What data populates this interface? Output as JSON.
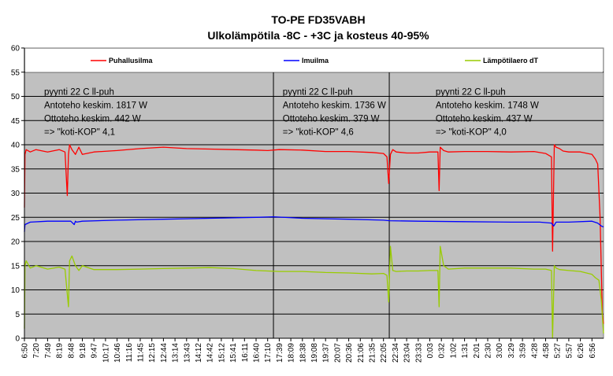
{
  "chart_data": {
    "type": "line",
    "title": "TO-PE FD35VABH",
    "subtitle": "Ulkolämpötila -8C - +3C ja kosteus 40-95%",
    "xlabel": "",
    "ylabel": "",
    "ylim": [
      0,
      60
    ],
    "y_ticks": [
      0,
      5,
      10,
      15,
      20,
      25,
      30,
      35,
      40,
      45,
      50,
      55,
      60
    ],
    "grid": true,
    "legend_position": "top",
    "plot_background": "#c0c0c0",
    "x_tick_labels": [
      "6:50",
      "7:20",
      "7:49",
      "8:19",
      "8:48",
      "9:18",
      "9:47",
      "10:17",
      "10:46",
      "11:16",
      "11:45",
      "12:15",
      "12:44",
      "13:14",
      "13:43",
      "14:12",
      "14:42",
      "15:12",
      "15:41",
      "16:11",
      "16:40",
      "17:10",
      "17:39",
      "18:09",
      "18:38",
      "19:08",
      "19:37",
      "20:07",
      "20:36",
      "21:06",
      "21:35",
      "22:05",
      "22:34",
      "23:04",
      "23:33",
      "0:03",
      "0:32",
      "1:02",
      "1:31",
      "2:01",
      "2:30",
      "3:00",
      "3:29",
      "3:59",
      "4:28",
      "4:58",
      "5:27",
      "5:57",
      "6:26",
      "6:56"
    ],
    "x_range": [
      0,
      50
    ],
    "separators_x": [
      21.5,
      31.5
    ],
    "series": [
      {
        "name": "Puhallusilma",
        "color": "#ff0000",
        "x": [
          0,
          0.05,
          0.15,
          0.5,
          1,
          2,
          3,
          3.5,
          3.7,
          3.8,
          3.9,
          4.1,
          4.4,
          4.7,
          5,
          6,
          8,
          10,
          12,
          14,
          16,
          18,
          20,
          21,
          22,
          24,
          26,
          28,
          30,
          31,
          31.3,
          31.45,
          31.6,
          31.8,
          32.1,
          33,
          34,
          35,
          35.7,
          35.8,
          35.9,
          36.2,
          36.6,
          38,
          40,
          42,
          44,
          45,
          45.5,
          45.6,
          45.75,
          45.9,
          46.2,
          46.5,
          47,
          48,
          49,
          49.3,
          49.5,
          49.7,
          49.9,
          50
        ],
        "values": [
          27,
          38,
          39,
          38.5,
          39,
          38.5,
          39,
          38.5,
          29.5,
          38,
          40,
          39,
          38,
          39.5,
          38,
          38.5,
          38.8,
          39.2,
          39.5,
          39.2,
          39.1,
          39,
          38.9,
          38.8,
          39,
          38.9,
          38.6,
          38.6,
          38.4,
          38.2,
          37.5,
          32,
          38,
          39,
          38.5,
          38.3,
          38.3,
          38.5,
          38.5,
          30.5,
          39.5,
          38.8,
          38.5,
          38.6,
          38.6,
          38.5,
          38.6,
          38.2,
          37.5,
          18,
          40,
          39.5,
          39.2,
          38.7,
          38.5,
          38.5,
          38,
          37,
          36,
          25,
          5,
          3
        ]
      },
      {
        "name": "Imuilma",
        "color": "#0000ff",
        "x": [
          0,
          0.05,
          0.5,
          2,
          4,
          4.3,
          4.4,
          4.5,
          5,
          8,
          12,
          16,
          20,
          21.5,
          24,
          28,
          31,
          31.5,
          34,
          38,
          42,
          44.5,
          45.5,
          45.7,
          45.9,
          47,
          49,
          49.5,
          49.8,
          50
        ],
        "values": [
          22,
          23.5,
          24,
          24.2,
          24.2,
          23.5,
          24.2,
          24,
          24.2,
          24.4,
          24.6,
          24.8,
          25,
          25.1,
          24.8,
          24.6,
          24.4,
          24.3,
          24.2,
          24.1,
          24,
          24,
          23.8,
          23.2,
          24,
          24,
          24.2,
          23.8,
          23.2,
          23
        ]
      },
      {
        "name": "Lämpötilaero dT",
        "color": "#99cc00",
        "x": [
          0,
          0.05,
          0.15,
          0.5,
          1,
          2,
          3,
          3.5,
          3.8,
          3.9,
          4.1,
          4.4,
          4.7,
          5,
          6,
          8,
          10,
          12,
          14,
          16,
          18,
          20,
          22,
          24,
          26,
          28,
          30,
          31,
          31.3,
          31.45,
          31.6,
          31.8,
          32.1,
          33,
          34,
          35,
          35.7,
          35.8,
          35.9,
          36.2,
          36.6,
          38,
          40,
          42,
          44,
          45,
          45.5,
          45.6,
          45.75,
          45.9,
          46.2,
          47,
          48,
          49,
          49.3,
          49.6,
          49.8,
          50
        ],
        "values": [
          2,
          15,
          16,
          14.5,
          15,
          14.3,
          14.7,
          14.3,
          6.5,
          16,
          17,
          15,
          14,
          15,
          14.2,
          14.2,
          14.3,
          14.4,
          14.5,
          14.6,
          14.4,
          14,
          13.8,
          13.8,
          13.6,
          13.5,
          13.3,
          13.4,
          13,
          7.5,
          19,
          14,
          13.8,
          13.9,
          13.9,
          14,
          14,
          6.5,
          19,
          15,
          14.3,
          14.5,
          14.5,
          14.5,
          14.3,
          14.3,
          14,
          0,
          15,
          14.5,
          14.2,
          14,
          13.8,
          13.2,
          12.5,
          12,
          8,
          1
        ]
      }
    ],
    "annotations": [
      {
        "x": 1.7,
        "lines": [
          "pyynti 22 C ll-puh",
          "Antoteho keskim. 1817 W",
          "Ottoteho keskim. 442 W",
          "=> \"koti-KOP\" 4,1"
        ]
      },
      {
        "x": 22.3,
        "lines": [
          "pyynti 22 C ll-puh",
          "Antoteho keskim. 1736 W",
          "Ottoteho keskim. 379 W",
          "=> \"koti-KOP\" 4,6"
        ]
      },
      {
        "x": 35.5,
        "lines": [
          "pyynti 22 C ll-puh",
          "Antoteho keskim. 1748 W",
          "Ottoteho keskim. 437 W",
          "=> \"koti-KOP\" 4,0"
        ]
      }
    ]
  }
}
